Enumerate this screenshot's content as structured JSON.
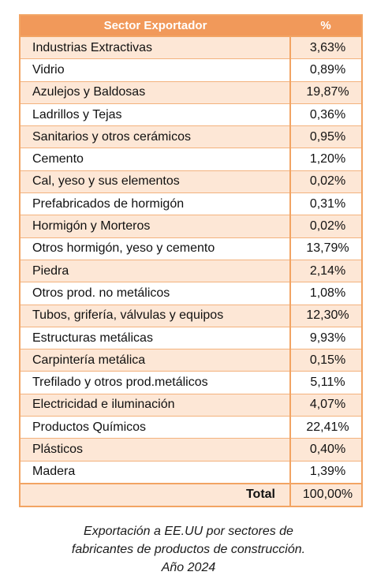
{
  "table": {
    "headers": {
      "sector": "Sector Exportador",
      "pct": "%"
    },
    "rows": [
      {
        "sector": "Industrias Extractivas",
        "pct": "3,63%"
      },
      {
        "sector": "Vidrio",
        "pct": "0,89%"
      },
      {
        "sector": "Azulejos y Baldosas",
        "pct": "19,87%"
      },
      {
        "sector": "Ladrillos y Tejas",
        "pct": "0,36%"
      },
      {
        "sector": "Sanitarios y otros cerámicos",
        "pct": "0,95%"
      },
      {
        "sector": "Cemento",
        "pct": "1,20%"
      },
      {
        "sector": "Cal, yeso y sus elementos",
        "pct": "0,02%"
      },
      {
        "sector": "Prefabricados de hormigón",
        "pct": "0,31%"
      },
      {
        "sector": "Hormigón y Morteros",
        "pct": "0,02%"
      },
      {
        "sector": "Otros hormigón, yeso y cemento",
        "pct": "13,79%"
      },
      {
        "sector": "Piedra",
        "pct": "2,14%"
      },
      {
        "sector": "Otros prod. no metálicos",
        "pct": "1,08%"
      },
      {
        "sector": "Tubos, grifería, válvulas y equipos",
        "pct": "12,30%"
      },
      {
        "sector": "Estructuras metálicas",
        "pct": "9,93%"
      },
      {
        "sector": "Carpintería metálica",
        "pct": "0,15%"
      },
      {
        "sector": "Trefilado y otros prod.metálicos",
        "pct": "5,11%"
      },
      {
        "sector": "Electricidad e iluminación",
        "pct": "4,07%"
      },
      {
        "sector": "Productos Químicos",
        "pct": "22,41%"
      },
      {
        "sector": "Plásticos",
        "pct": "0,40%"
      },
      {
        "sector": "Madera",
        "pct": "1,39%"
      }
    ],
    "total": {
      "label": "Total",
      "pct": "100,00%"
    }
  },
  "caption": {
    "line1": "Exportación a EE.UU por sectores de",
    "line2": "fabricantes de productos de construcción.",
    "line3": "Año 2024"
  },
  "colors": {
    "header_bg": "#f1995a",
    "stripe_bg": "#fde7d6",
    "border": "#f2a463"
  }
}
